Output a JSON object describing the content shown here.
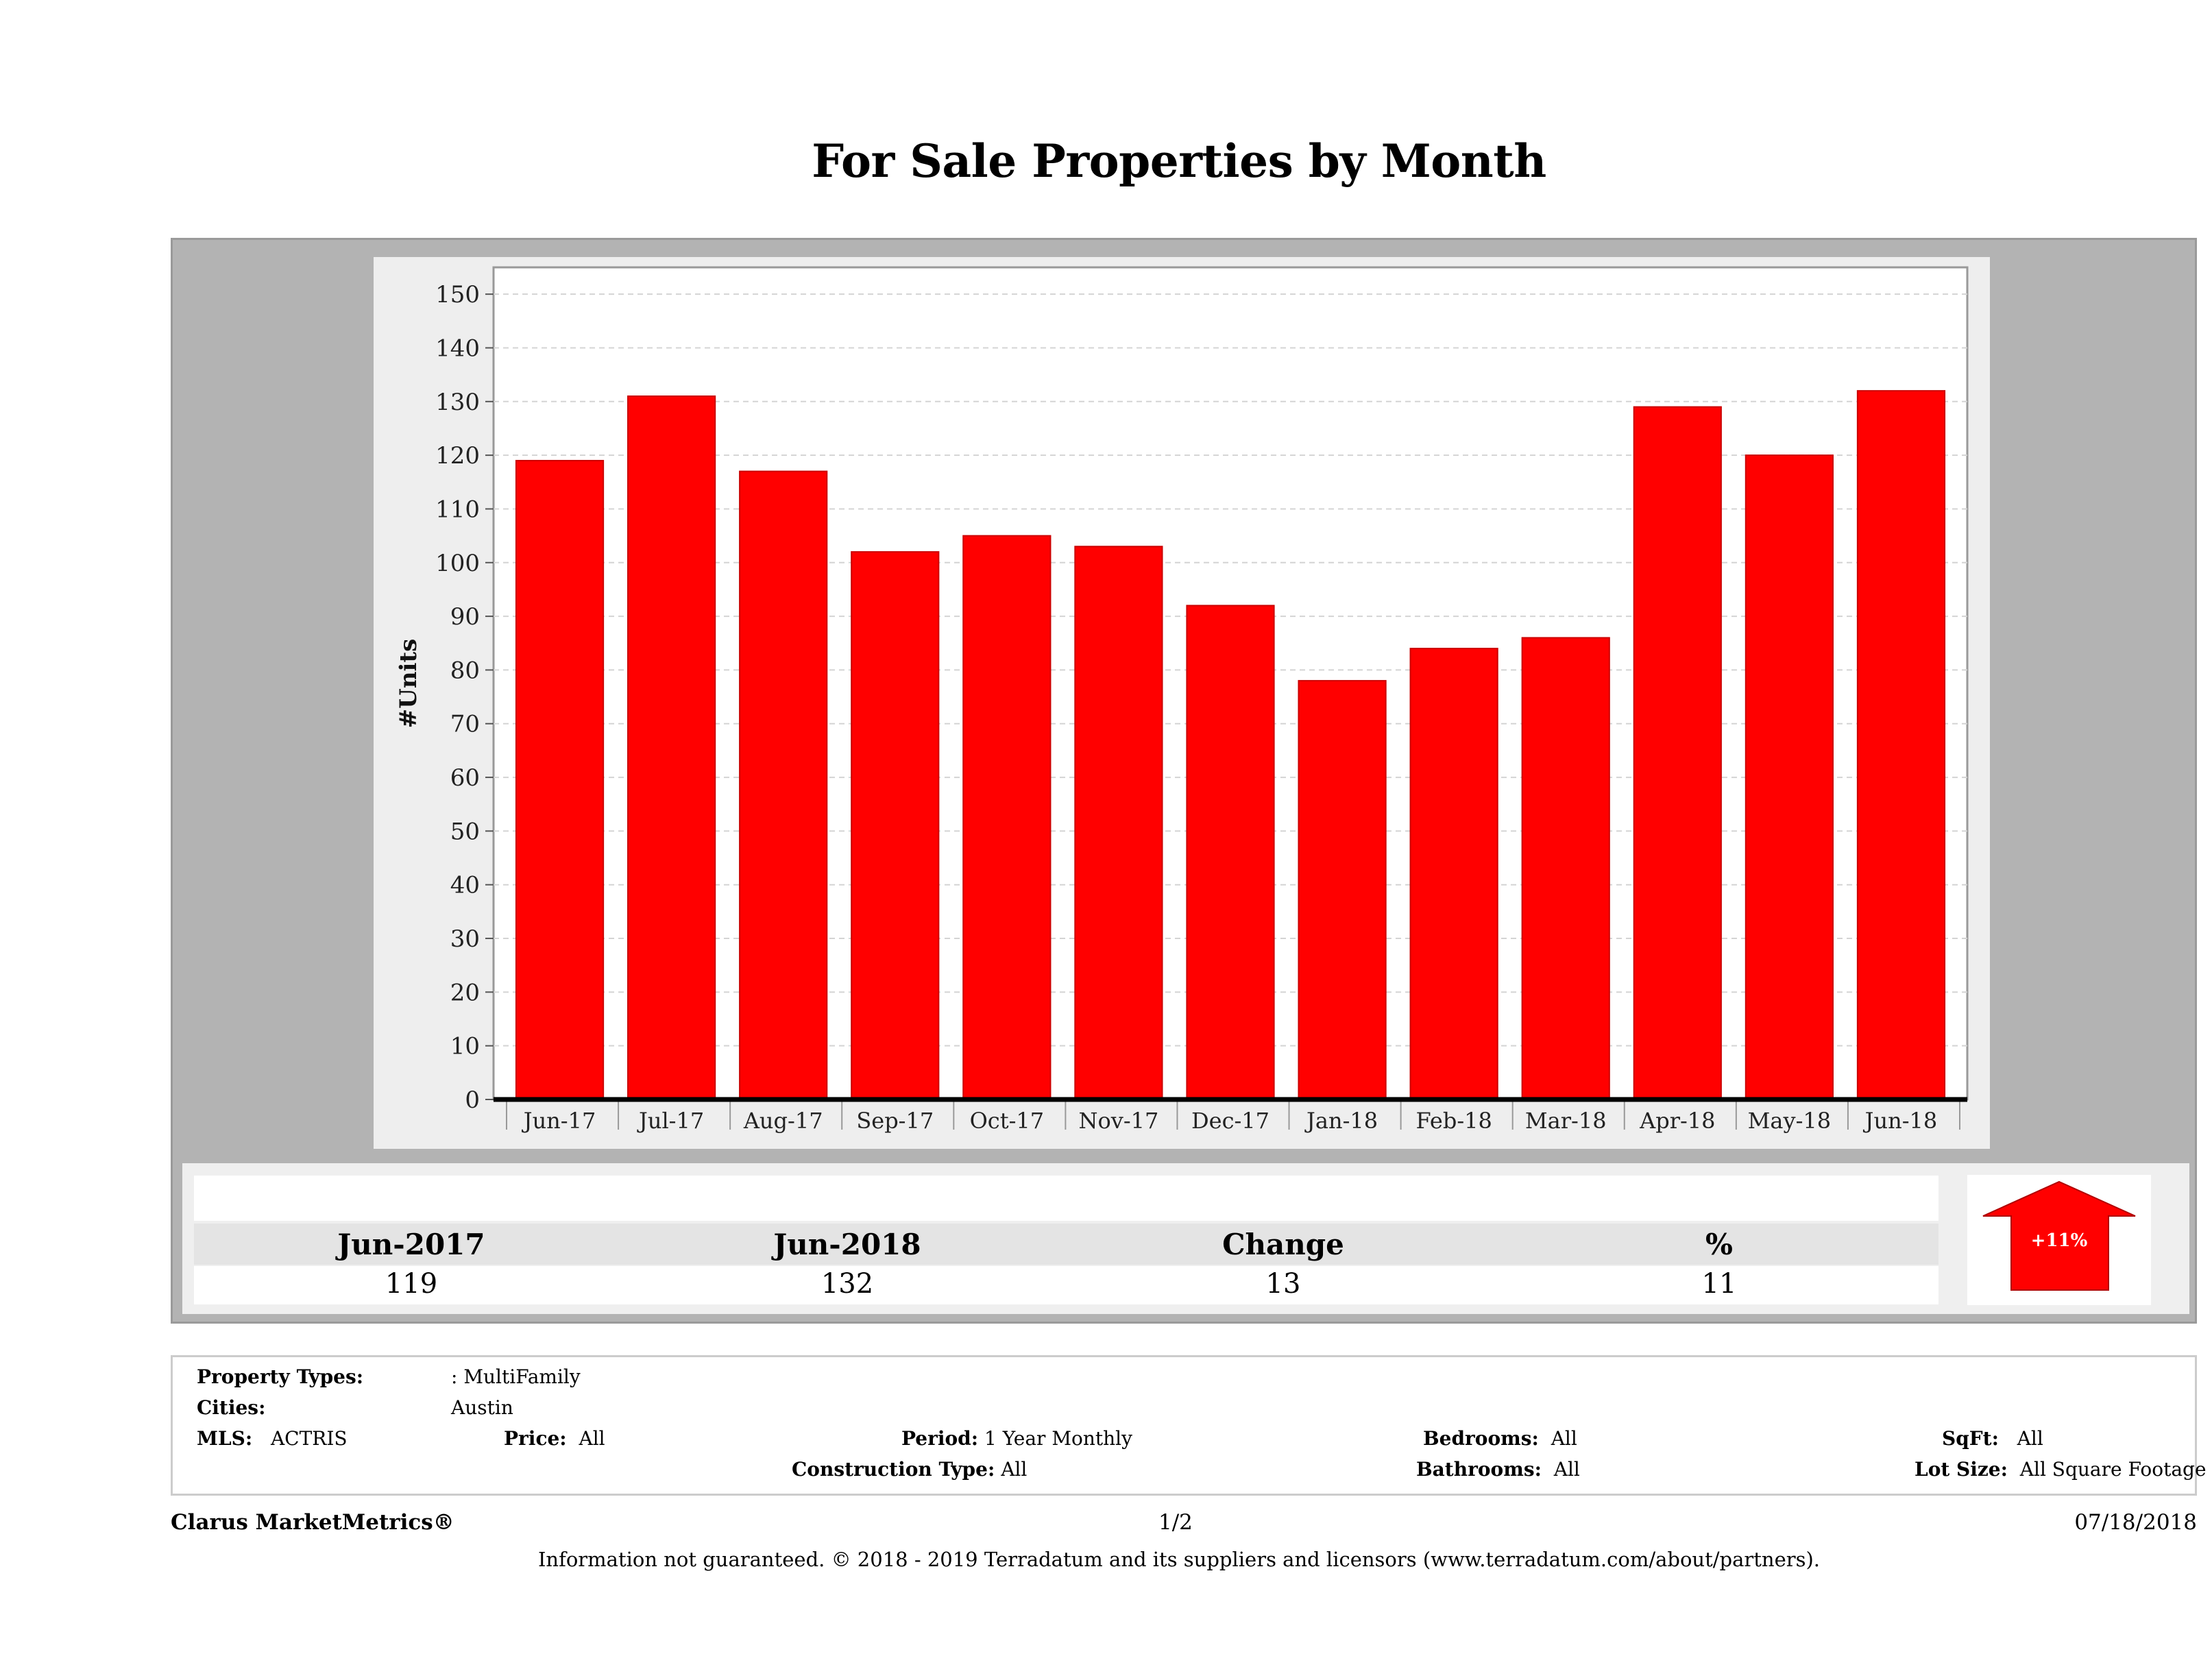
{
  "title": "For Sale Properties by Month",
  "chart_data": {
    "type": "bar",
    "categories": [
      "Jun-17",
      "Jul-17",
      "Aug-17",
      "Sep-17",
      "Oct-17",
      "Nov-17",
      "Dec-17",
      "Jan-18",
      "Feb-18",
      "Mar-18",
      "Apr-18",
      "May-18",
      "Jun-18"
    ],
    "values": [
      119,
      131,
      117,
      102,
      105,
      103,
      92,
      78,
      84,
      86,
      129,
      120,
      132
    ],
    "ylabel": "#Units",
    "ylim": [
      0,
      155
    ],
    "yticks": [
      0,
      10,
      20,
      30,
      40,
      50,
      60,
      70,
      80,
      90,
      100,
      110,
      120,
      130,
      140,
      150
    ],
    "grid": true,
    "bar_color": "#ff0000"
  },
  "summary": {
    "headers": [
      "Jun-2017",
      "Jun-2018",
      "Change",
      "%"
    ],
    "values": [
      "119",
      "132",
      "13",
      "11"
    ],
    "badge": "+11%",
    "arrow_color": "#ff0000"
  },
  "criteria": {
    "property_types_label": "Property Types:",
    "property_types_value": ": MultiFamily",
    "cities_label": "Cities:",
    "cities_value": "Austin",
    "mls_label": "MLS:",
    "mls_value": "ACTRIS",
    "price_label": "Price:",
    "price_value": "All",
    "period_label": "Period:",
    "period_value": "1 Year Monthly",
    "construction_label": "Construction Type:",
    "construction_value": "All",
    "bedrooms_label": "Bedrooms:",
    "bedrooms_value": "All",
    "bathrooms_label": "Bathrooms:",
    "bathrooms_value": "All",
    "sqft_label": "SqFt:",
    "sqft_value": "All",
    "lotsize_label": "Lot Size:",
    "lotsize_value": "All Square Footage"
  },
  "footer": {
    "brand": "Clarus MarketMetrics®",
    "page": "1/2",
    "date": "07/18/2018",
    "disclaimer": "Information not guaranteed. © 2018 - 2019 Terradatum and its suppliers and licensors (www.terradatum.com/about/partners)."
  }
}
